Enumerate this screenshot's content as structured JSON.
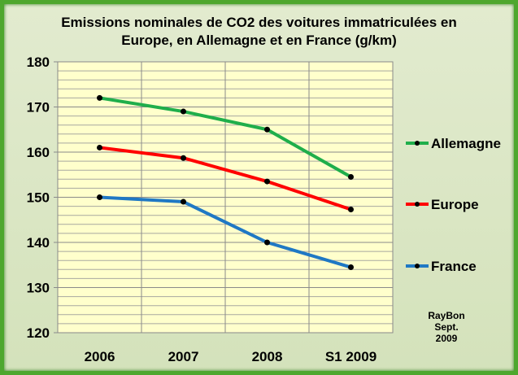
{
  "chart_data": {
    "type": "line",
    "title_line1": "Emissions  nominales de CO2 des voitures immatriculées en",
    "title_line2": "Europe, en Allemagne et en France (g/km)",
    "categories": [
      "2006",
      "2007",
      "2008",
      "S1 2009"
    ],
    "ylim": [
      120,
      180
    ],
    "yticks": [
      120,
      130,
      140,
      150,
      160,
      170,
      180
    ],
    "minor_grid_step": 2,
    "grid": true,
    "legend_position": "right",
    "series": [
      {
        "name": "Allemagne",
        "color": "#1fae4b",
        "values": [
          172,
          169,
          165,
          154.5
        ]
      },
      {
        "name": "Europe",
        "color": "#ff0000",
        "values": [
          161,
          158.7,
          153.5,
          147.3
        ]
      },
      {
        "name": "France",
        "color": "#1f78c4",
        "values": [
          150,
          149,
          140,
          134.5
        ]
      }
    ],
    "annotation": [
      "RayBon",
      "Sept.",
      "2009"
    ]
  }
}
